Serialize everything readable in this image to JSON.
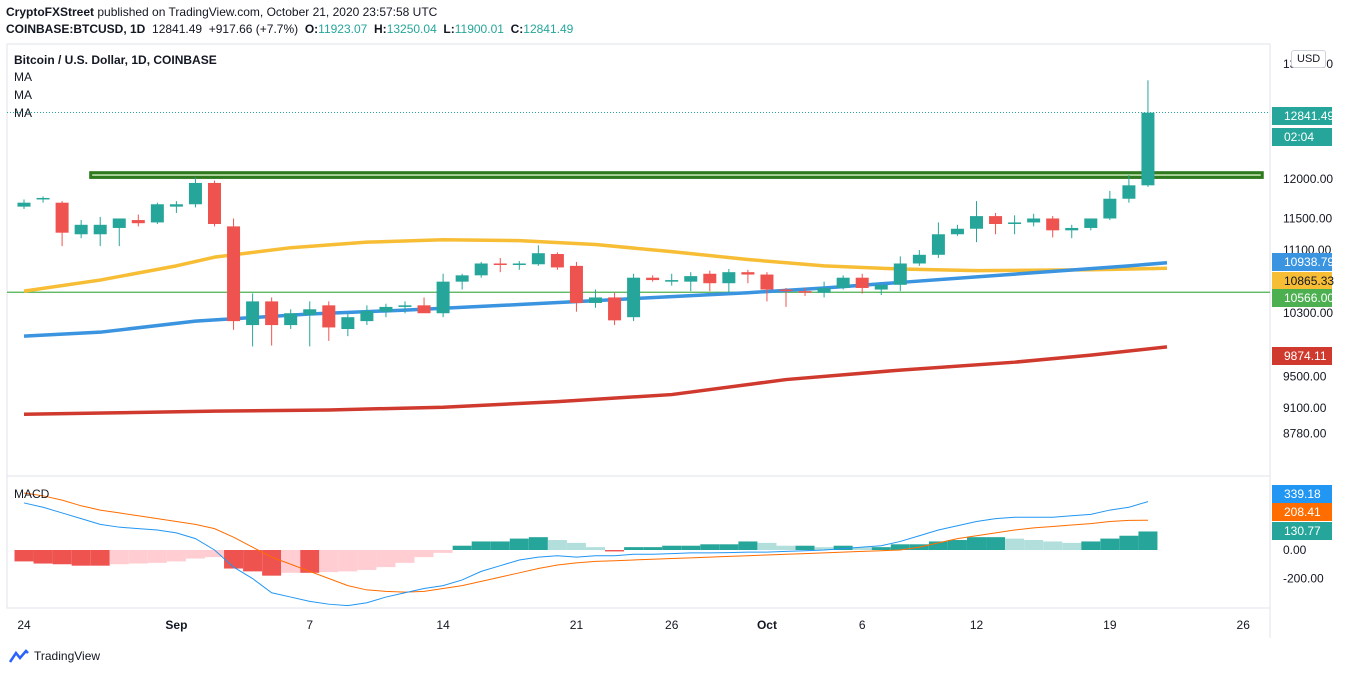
{
  "header": {
    "publisher": "CryptoFXStreet",
    "published_text": " published on TradingView.com, October 21, 2020 23:57:58 UTC",
    "symbol": "COINBASE:BTCUSD, 1D",
    "price": "12841.49",
    "change": "+917.66 (+7.7%)",
    "o_label": "O:",
    "o_value": "11923.07",
    "h_label": "H:",
    "h_value": "13250.04",
    "l_label": "L:",
    "l_value": "11900.01",
    "c_label": "C:",
    "c_value": "12841.49"
  },
  "chart": {
    "title": "Bitcoin / U.S. Dollar, 1D, COINBASE",
    "ma_labels": [
      "MA",
      "MA",
      "MA"
    ],
    "currency": "USD",
    "countdown": "02:04",
    "macd_label": "MACD"
  },
  "chart_data": {
    "type": "candlestick",
    "title": "Bitcoin / U.S. Dollar, 1D, COINBASE",
    "price_axis": {
      "ticks": [
        {
          "v": 12000,
          "label": "12000.00"
        },
        {
          "v": 11500,
          "label": "11500.00"
        },
        {
          "v": 11100,
          "label": "11100.00"
        },
        {
          "v": 10300,
          "label": "10300.00"
        },
        {
          "v": 9500,
          "label": "9500.00"
        },
        {
          "v": 9100,
          "label": "9100.00"
        },
        {
          "v": 8780,
          "label": "8780.00"
        }
      ],
      "top_tick_partial": "13000.00"
    },
    "x_axis": {
      "labels": [
        {
          "d": 0,
          "label": "24"
        },
        {
          "d": 8,
          "label": "Sep"
        },
        {
          "d": 15,
          "label": "7"
        },
        {
          "d": 22,
          "label": "14"
        },
        {
          "d": 29,
          "label": "21"
        },
        {
          "d": 34,
          "label": "26"
        },
        {
          "d": 39,
          "label": "Oct"
        },
        {
          "d": 44,
          "label": "6"
        },
        {
          "d": 50,
          "label": "12"
        },
        {
          "d": 57,
          "label": "19"
        },
        {
          "d": 64,
          "label": "26"
        }
      ]
    },
    "candles": [
      [
        11650,
        11740,
        11620,
        11700
      ],
      [
        11750,
        11780,
        11700,
        11760
      ],
      [
        11700,
        11720,
        11150,
        11320
      ],
      [
        11300,
        11480,
        11250,
        11420
      ],
      [
        11300,
        11520,
        11150,
        11420
      ],
      [
        11380,
        11500,
        11150,
        11500
      ],
      [
        11480,
        11550,
        11400,
        11440
      ],
      [
        11450,
        11700,
        11430,
        11680
      ],
      [
        11650,
        11720,
        11570,
        11680
      ],
      [
        11680,
        12020,
        11640,
        11950
      ],
      [
        11950,
        11980,
        11400,
        11430
      ],
      [
        11400,
        11500,
        10090,
        10200
      ],
      [
        10150,
        10550,
        9880,
        10450
      ],
      [
        10450,
        10500,
        9890,
        10150
      ],
      [
        10150,
        10350,
        10100,
        10300
      ],
      [
        10280,
        10450,
        9880,
        10350
      ],
      [
        10400,
        10450,
        9950,
        10120
      ],
      [
        10100,
        10300,
        10010,
        10250
      ],
      [
        10200,
        10400,
        10150,
        10330
      ],
      [
        10320,
        10420,
        10250,
        10380
      ],
      [
        10380,
        10450,
        10300,
        10400
      ],
      [
        10400,
        10500,
        10320,
        10300
      ],
      [
        10300,
        10800,
        10250,
        10700
      ],
      [
        10700,
        10800,
        10600,
        10780
      ],
      [
        10780,
        10950,
        10750,
        10930
      ],
      [
        10930,
        11000,
        10820,
        10920
      ],
      [
        10920,
        10960,
        10850,
        10930
      ],
      [
        10920,
        11160,
        10900,
        11060
      ],
      [
        11050,
        11070,
        10850,
        10880
      ],
      [
        10900,
        10950,
        10320,
        10430
      ],
      [
        10430,
        10600,
        10370,
        10500
      ],
      [
        10500,
        10560,
        10150,
        10210
      ],
      [
        10250,
        10800,
        10200,
        10750
      ],
      [
        10750,
        10780,
        10700,
        10720
      ],
      [
        10700,
        10800,
        10650,
        10720
      ],
      [
        10700,
        10820,
        10580,
        10770
      ],
      [
        10800,
        10840,
        10580,
        10680
      ],
      [
        10680,
        10860,
        10560,
        10820
      ],
      [
        10820,
        10850,
        10680,
        10790
      ],
      [
        10790,
        10820,
        10450,
        10600
      ],
      [
        10600,
        10620,
        10380,
        10580
      ],
      [
        10580,
        10620,
        10520,
        10560
      ],
      [
        10560,
        10700,
        10500,
        10620
      ],
      [
        10620,
        10780,
        10600,
        10750
      ],
      [
        10750,
        10800,
        10550,
        10620
      ],
      [
        10600,
        10650,
        10530,
        10660
      ],
      [
        10660,
        11020,
        10580,
        10930
      ],
      [
        10930,
        11100,
        10900,
        11040
      ],
      [
        11040,
        11450,
        11000,
        11300
      ],
      [
        11300,
        11420,
        11280,
        11370
      ],
      [
        11370,
        11720,
        11200,
        11530
      ],
      [
        11530,
        11570,
        11300,
        11430
      ],
      [
        11430,
        11540,
        11300,
        11450
      ],
      [
        11450,
        11560,
        11400,
        11500
      ],
      [
        11500,
        11530,
        11260,
        11350
      ],
      [
        11350,
        11420,
        11250,
        11380
      ],
      [
        11380,
        11500,
        11350,
        11500
      ],
      [
        11500,
        11850,
        11480,
        11750
      ],
      [
        11750,
        12050,
        11700,
        11920
      ],
      [
        11920,
        13250,
        11900,
        12840
      ]
    ],
    "ma_series": [
      {
        "color": "#f7bd35",
        "points": [
          [
            0,
            10580
          ],
          [
            4,
            10720
          ],
          [
            8,
            10900
          ],
          [
            10,
            11010
          ],
          [
            14,
            11130
          ],
          [
            18,
            11200
          ],
          [
            22,
            11230
          ],
          [
            26,
            11220
          ],
          [
            30,
            11170
          ],
          [
            34,
            11080
          ],
          [
            38,
            10980
          ],
          [
            42,
            10900
          ],
          [
            46,
            10860
          ],
          [
            50,
            10840
          ],
          [
            56,
            10850
          ],
          [
            60,
            10870
          ]
        ]
      },
      {
        "color": "#3a94e0",
        "points": [
          [
            0,
            10010
          ],
          [
            4,
            10060
          ],
          [
            9,
            10200
          ],
          [
            15,
            10290
          ],
          [
            20,
            10340
          ],
          [
            26,
            10410
          ],
          [
            30,
            10460
          ],
          [
            34,
            10510
          ],
          [
            38,
            10560
          ],
          [
            42,
            10620
          ],
          [
            46,
            10690
          ],
          [
            50,
            10760
          ],
          [
            54,
            10830
          ],
          [
            58,
            10900
          ],
          [
            60,
            10940
          ]
        ]
      },
      {
        "color": "#d03a2e",
        "points": [
          [
            0,
            9020
          ],
          [
            5,
            9040
          ],
          [
            10,
            9060
          ],
          [
            16,
            9075
          ],
          [
            22,
            9110
          ],
          [
            28,
            9180
          ],
          [
            34,
            9270
          ],
          [
            40,
            9460
          ],
          [
            46,
            9580
          ],
          [
            52,
            9680
          ],
          [
            56,
            9770
          ],
          [
            60,
            9874
          ]
        ]
      }
    ],
    "levels": [
      {
        "v": 10566,
        "color": "#4caf50",
        "label": "10566.00"
      },
      {
        "v": 12841.49,
        "color": "#26a69a",
        "dotted": true,
        "label": "12841.49"
      }
    ],
    "resistance_zone": {
      "from_d": 3.5,
      "to_d": 65,
      "low": 12020,
      "high": 12080,
      "fill": "#b7d9a4",
      "border": "#2f7a1f"
    },
    "price_labels": [
      {
        "v": 12841.49,
        "label": "12841.49",
        "bg": "#26a69a"
      },
      {
        "v": 10938.79,
        "label": "10938.79",
        "bg": "#3a94e0"
      },
      {
        "v": 10865.33,
        "label": "10865.33",
        "bg": "#f7bd35"
      },
      {
        "v": 10566.0,
        "label": "10566.00",
        "bg": "#4caf50"
      },
      {
        "v": 9874.11,
        "label": "9874.11",
        "bg": "#d03a2e"
      }
    ],
    "macd": {
      "ticks": [
        {
          "v": 0,
          "label": "0.00"
        },
        {
          "v": -200,
          "label": "-200.00"
        }
      ],
      "histogram": [
        -80,
        -95,
        -100,
        -110,
        -110,
        -100,
        -95,
        -90,
        -80,
        -60,
        -50,
        -130,
        -150,
        -180,
        -160,
        -160,
        -155,
        -150,
        -140,
        -120,
        -90,
        -50,
        -20,
        30,
        60,
        60,
        80,
        90,
        70,
        50,
        20,
        -10,
        20,
        20,
        30,
        30,
        40,
        40,
        60,
        50,
        30,
        30,
        20,
        30,
        20,
        20,
        40,
        40,
        60,
        70,
        90,
        90,
        80,
        70,
        60,
        50,
        60,
        80,
        100,
        130
      ],
      "macd_line": [
        330,
        300,
        260,
        220,
        180,
        160,
        150,
        140,
        120,
        80,
        0,
        -120,
        -200,
        -300,
        -330,
        -360,
        -380,
        -390,
        -370,
        -330,
        -300,
        -270,
        -250,
        -210,
        -150,
        -110,
        -70,
        -50,
        -40,
        -50,
        -40,
        -40,
        -30,
        -30,
        -25,
        -20,
        -20,
        -18,
        -15,
        -15,
        -10,
        -5,
        0,
        10,
        20,
        30,
        60,
        100,
        140,
        170,
        200,
        220,
        230,
        230,
        230,
        240,
        250,
        280,
        300,
        339.18
      ],
      "signal_line": [
        400,
        380,
        350,
        310,
        280,
        260,
        240,
        220,
        200,
        180,
        150,
        90,
        20,
        -50,
        -100,
        -150,
        -200,
        -250,
        -280,
        -290,
        -295,
        -290,
        -270,
        -250,
        -220,
        -190,
        -160,
        -130,
        -105,
        -90,
        -80,
        -75,
        -70,
        -65,
        -60,
        -55,
        -50,
        -45,
        -40,
        -35,
        -30,
        -25,
        -20,
        -15,
        -10,
        -5,
        0,
        20,
        50,
        80,
        100,
        120,
        140,
        155,
        165,
        175,
        185,
        200,
        208,
        208.41
      ],
      "labels": [
        {
          "v": 339.18,
          "label": "339.18",
          "bg": "#2196f3"
        },
        {
          "v": 208.41,
          "label": "208.41",
          "bg": "#ff6d00"
        },
        {
          "v": 130.77,
          "label": "130.77",
          "bg": "#26a69a"
        }
      ]
    }
  }
}
